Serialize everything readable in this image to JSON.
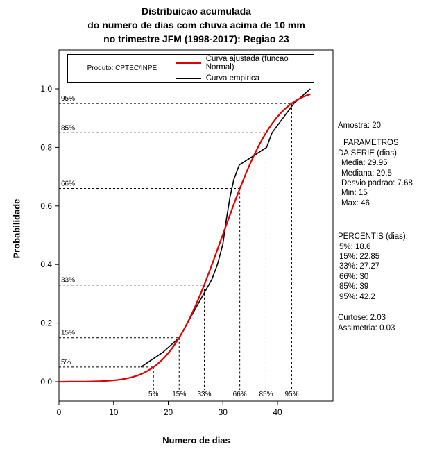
{
  "title": {
    "line1": "Distribuicao acumulada",
    "line2": "do numero de dias com chuva acima de 10 mm",
    "line3": "no trimestre JFM (1998-2017): Regiao 23"
  },
  "legend": {
    "product_label": "Produto: CPTEC/INPE",
    "entries": [
      {
        "label": "Curva ajustada (funcao Normal)",
        "color": "#e00000",
        "thickness": 3
      },
      {
        "label": "Curva empirica",
        "color": "#000000",
        "thickness": 2
      }
    ]
  },
  "axes": {
    "xlabel": "Numero de dias",
    "ylabel": "Probabilidade",
    "x_ticks": [
      0,
      10,
      20,
      30,
      40
    ],
    "y_ticks": [
      "0.0",
      "0.2",
      "0.4",
      "0.6",
      "0.8",
      "1.0"
    ]
  },
  "stats_panel": {
    "groups": [
      [
        "Amostra: 20"
      ],
      [
        "PARAMETROS",
        "DA SERIE (dias)",
        "Media: 29.95",
        "Mediana: 29.5",
        "Desvio padrao: 7.68",
        "Min: 15",
        "Max: 46"
      ],
      [
        "PERCENTIS (dias):",
        "5%: 18.6",
        "15%: 22.85",
        "33%: 27.27",
        "66%: 30",
        "85%: 39",
        "95%: 42.2"
      ],
      [
        "Curtose: 2.03",
        "Assimetria: 0.03"
      ]
    ]
  },
  "chart_data": {
    "type": "line",
    "title": "Distribuicao acumulada do numero de dias com chuva acima de 10 mm no trimestre JFM (1998-2017): Regiao 23",
    "xlabel": "Numero de dias",
    "ylabel": "Probabilidade",
    "xlim": [
      0,
      47
    ],
    "ylim": [
      0,
      1
    ],
    "x_ticks": [
      0,
      10,
      20,
      30,
      40
    ],
    "y_ticks": [
      0,
      0.2,
      0.4,
      0.6,
      0.8,
      1.0
    ],
    "grid": false,
    "legend_position": "top-left",
    "series": [
      {
        "name": "Curva ajustada (funcao Normal)",
        "type": "normal_cdf",
        "color": "#e00000",
        "mean": 29.95,
        "sd": 7.68,
        "x_start": 0,
        "x_end": 46
      },
      {
        "name": "Curva empirica",
        "type": "polyline",
        "color": "#000000",
        "points": [
          [
            15,
            0.05
          ],
          [
            19,
            0.1
          ],
          [
            22,
            0.15
          ],
          [
            23.5,
            0.2
          ],
          [
            25,
            0.25
          ],
          [
            26.5,
            0.3
          ],
          [
            28,
            0.35
          ],
          [
            29,
            0.4
          ],
          [
            30,
            0.47
          ],
          [
            30.6,
            0.55
          ],
          [
            31.3,
            0.63
          ],
          [
            32,
            0.69
          ],
          [
            33,
            0.74
          ],
          [
            35.5,
            0.77
          ],
          [
            38,
            0.8
          ],
          [
            39,
            0.85
          ],
          [
            41,
            0.9
          ],
          [
            43,
            0.95
          ],
          [
            46,
            1.0
          ]
        ]
      }
    ],
    "percentile_guides": {
      "probabilities": [
        0.05,
        0.15,
        0.33,
        0.66,
        0.85,
        0.95
      ],
      "labels": [
        "5%",
        "15%",
        "33%",
        "66%",
        "85%",
        "95%"
      ],
      "quantiles_fitted": [
        17.3,
        22.0,
        26.6,
        33.1,
        37.9,
        42.6
      ]
    },
    "sample_stats": {
      "n": 20,
      "mean": 29.95,
      "median": 29.5,
      "sd": 7.68,
      "min": 15,
      "max": 46,
      "percentiles": {
        "5%": 18.6,
        "15%": 22.85,
        "33%": 27.27,
        "66%": 30,
        "85%": 39,
        "95%": 42.2
      },
      "kurtosis": 2.03,
      "skewness": 0.03
    }
  }
}
